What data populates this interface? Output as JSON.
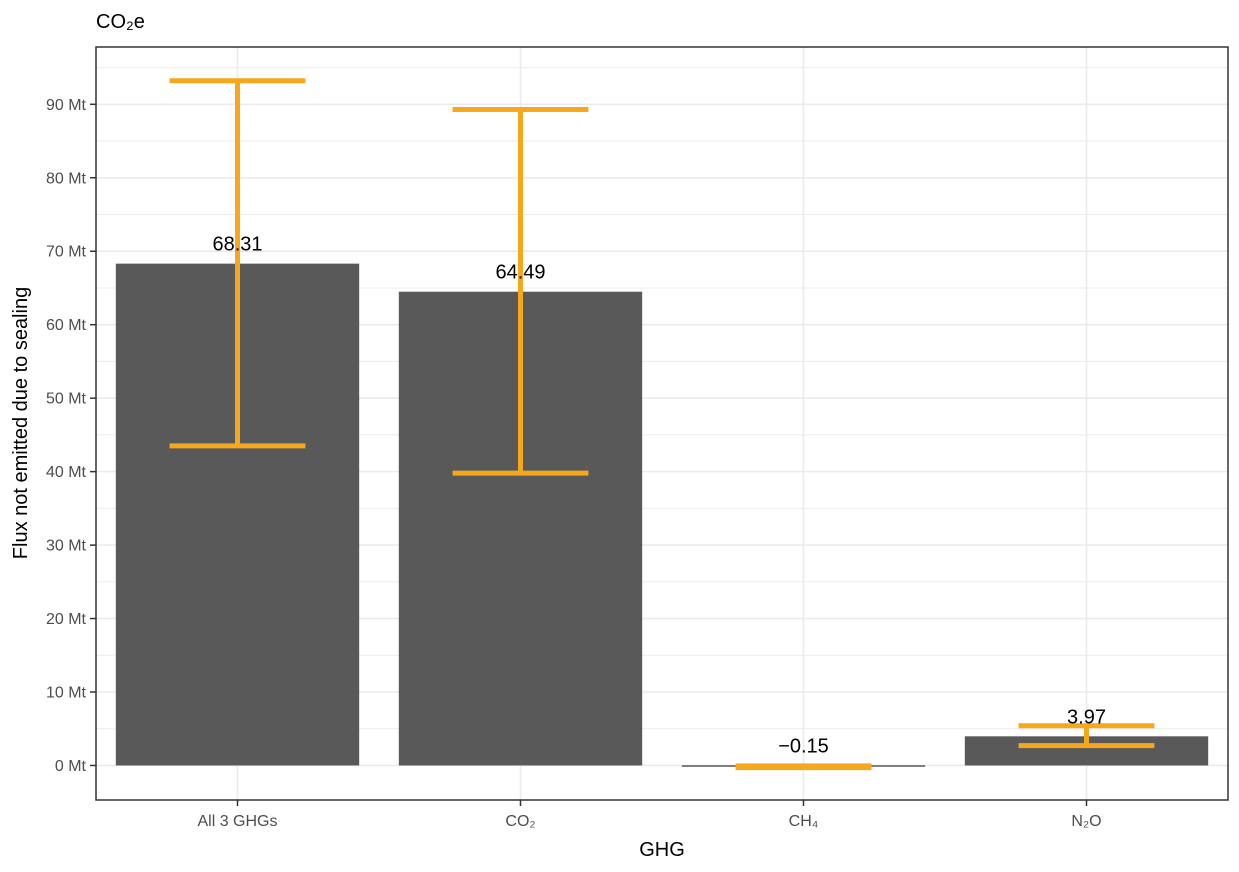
{
  "chart_data": {
    "type": "bar",
    "title": "CO₂e",
    "xlabel": "GHG",
    "ylabel": "Flux not emitted due to sealing",
    "categories": [
      "All 3 GHGs",
      "CO₂",
      "CH₄",
      "N₂O"
    ],
    "values": [
      68.31,
      64.49,
      -0.15,
      3.97
    ],
    "value_labels": [
      "68.31",
      "64.49",
      "−0.15",
      "3.97"
    ],
    "error_bars": [
      {
        "low": 43.5,
        "high": 93.2
      },
      {
        "low": 39.8,
        "high": 89.3
      },
      {
        "low": -0.3,
        "high": -0.05
      },
      {
        "low": 2.7,
        "high": 5.4
      }
    ],
    "yticks": [
      0,
      10,
      20,
      30,
      40,
      50,
      60,
      70,
      80,
      90
    ],
    "ytick_labels": [
      "0 Mt",
      "10 Mt",
      "20 Mt",
      "30 Mt",
      "40 Mt",
      "50 Mt",
      "60 Mt",
      "70 Mt",
      "80 Mt",
      "90 Mt"
    ],
    "ylim": [
      -4.7,
      97.8
    ],
    "grid": true,
    "legend": "none",
    "colors": {
      "bar": "#595959",
      "error_bar": "#f5a81c",
      "grid": "#ebebeb",
      "panel_border": "#333333"
    }
  }
}
